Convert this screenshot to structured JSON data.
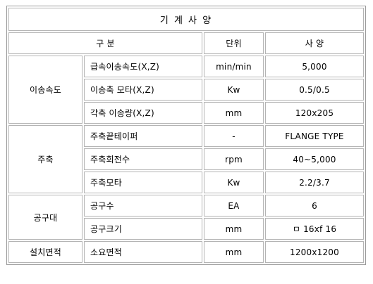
{
  "title": "기 계 사 양",
  "headers": {
    "category": "구 분",
    "unit": "단위",
    "spec": "사 양"
  },
  "groups": [
    {
      "name": "이송속도",
      "rows": [
        {
          "item": "급속이송속도(X,Z)",
          "unit": "min/min",
          "value": "5,000"
        },
        {
          "item": "이송축 모타(X,Z)",
          "unit": "Kw",
          "value": "0.5/0.5"
        },
        {
          "item": "각축 이송량(X,Z)",
          "unit": "mm",
          "value": "120x205"
        }
      ]
    },
    {
      "name": "주축",
      "rows": [
        {
          "item": "주축끝테이퍼",
          "unit": "-",
          "value": "FLANGE TYPE"
        },
        {
          "item": "주축회전수",
          "unit": "rpm",
          "value": "40~5,000"
        },
        {
          "item": "주축모타",
          "unit": "Kw",
          "value": "2.2/3.7"
        }
      ]
    },
    {
      "name": "공구대",
      "rows": [
        {
          "item": "공구수",
          "unit": "EA",
          "value": "6"
        },
        {
          "item": "공구크기",
          "unit": "mm",
          "value": "ㅁ 16xf 16"
        }
      ]
    },
    {
      "name": "설치면적",
      "rows": [
        {
          "item": "소요면적",
          "unit": "mm",
          "value": "1200x1200"
        }
      ]
    }
  ]
}
